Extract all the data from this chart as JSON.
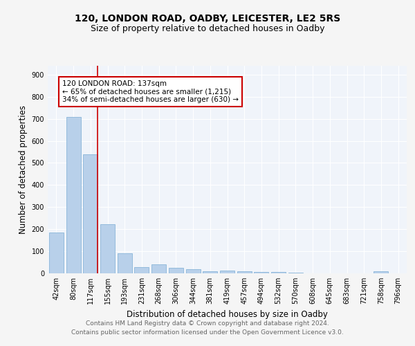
{
  "title1": "120, LONDON ROAD, OADBY, LEICESTER, LE2 5RS",
  "title2": "Size of property relative to detached houses in Oadby",
  "xlabel": "Distribution of detached houses by size in Oadby",
  "ylabel": "Number of detached properties",
  "categories": [
    "42sqm",
    "80sqm",
    "117sqm",
    "155sqm",
    "193sqm",
    "231sqm",
    "268sqm",
    "306sqm",
    "344sqm",
    "381sqm",
    "419sqm",
    "457sqm",
    "494sqm",
    "532sqm",
    "570sqm",
    "608sqm",
    "645sqm",
    "683sqm",
    "721sqm",
    "758sqm",
    "796sqm"
  ],
  "values": [
    185,
    707,
    540,
    222,
    90,
    28,
    40,
    25,
    18,
    10,
    13,
    8,
    6,
    5,
    2,
    0,
    0,
    0,
    0,
    8,
    0
  ],
  "bar_color": "#b8d0ea",
  "bar_edge_color": "#7aadd4",
  "property_line_label": "120 LONDON ROAD: 137sqm",
  "annotation_line1": "← 65% of detached houses are smaller (1,215)",
  "annotation_line2": "34% of semi-detached houses are larger (630) →",
  "annotation_box_color": "#ffffff",
  "annotation_box_edge": "#cc0000",
  "vline_color": "#cc0000",
  "ylim": [
    0,
    940
  ],
  "yticks": [
    0,
    100,
    200,
    300,
    400,
    500,
    600,
    700,
    800,
    900
  ],
  "footer_line1": "Contains HM Land Registry data © Crown copyright and database right 2024.",
  "footer_line2": "Contains public sector information licensed under the Open Government Licence v3.0.",
  "bg_color": "#f0f4fa",
  "title1_fontsize": 10,
  "title2_fontsize": 9,
  "xlabel_fontsize": 8.5,
  "ylabel_fontsize": 8.5,
  "tick_fontsize": 7,
  "annot_fontsize": 7.5,
  "footer_fontsize": 6.5
}
